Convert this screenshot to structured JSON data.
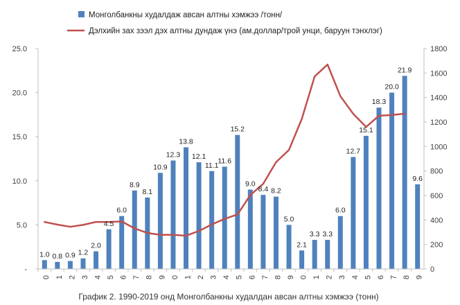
{
  "caption": "График 2. 1990-2019 онд Монголбанкны худалдан авсан алтны хэмжээ (тонн)",
  "colors": {
    "bar": "#4f81bd",
    "line": "#c0504d",
    "axis": "#bfbfbf",
    "text": "#404040"
  },
  "chart_data": {
    "type": "bar+line",
    "categories": [
      "0",
      "1",
      "2",
      "3",
      "4",
      "5",
      "6",
      "7",
      "8",
      "9",
      "0",
      "1",
      "2",
      "3",
      "4",
      "5",
      "6",
      "7",
      "8",
      "9",
      "0",
      "1",
      "2",
      "3",
      "4",
      "5",
      "6",
      "7",
      "8",
      "9"
    ],
    "series": [
      {
        "name": "Монголбанкны худалдаж  авсан алтны хэмжээ /тонн/",
        "type": "bar",
        "axis": "left",
        "values": [
          1.0,
          0.8,
          0.9,
          1.2,
          2.0,
          4.5,
          6.0,
          8.9,
          8.1,
          10.9,
          12.3,
          13.8,
          12.1,
          11.1,
          11.6,
          15.2,
          9.0,
          8.4,
          8.2,
          5.0,
          2.1,
          3.3,
          3.3,
          6.0,
          12.7,
          15.1,
          18.3,
          20.0,
          21.9,
          9.6
        ],
        "labels": [
          "1.0",
          "0.8",
          "0.9",
          "1.2",
          "2.0",
          "4.5",
          "6.0",
          "8.9",
          "8.1",
          "10.9",
          "12.3",
          "13.8",
          "12.1",
          "11.1",
          "11.6",
          "15.2",
          "9.0",
          "8.4",
          "8.2",
          "5.0",
          "2.1",
          "3.3",
          "3.3",
          "6.0",
          "12.7",
          "15.1",
          "18.3",
          "20.0",
          "21.9",
          "9.6"
        ]
      },
      {
        "name": "Дэлхийн зах зээл дэх алтны дундаж үнэ (ам.доллар/трой унци, баруун тэнхлэг)",
        "type": "line",
        "axis": "right",
        "values": [
          384,
          362,
          344,
          360,
          384,
          384,
          388,
          331,
          294,
          279,
          279,
          271,
          310,
          363,
          409,
          445,
          604,
          695,
          872,
          972,
          1225,
          1572,
          1669,
          1411,
          1266,
          1160,
          1251,
          1257,
          1268,
          null
        ]
      }
    ],
    "left_axis": {
      "ylim": [
        0,
        25
      ],
      "ticks": [
        "-",
        "5.0",
        "10.0",
        "15.0",
        "20.0",
        "25.0"
      ]
    },
    "right_axis": {
      "ylim": [
        0,
        1800
      ],
      "ticks": [
        "0",
        "200",
        "400",
        "600",
        "800",
        "1000",
        "1200",
        "1400",
        "1600",
        "1800"
      ]
    },
    "legend_position": "top-left"
  }
}
